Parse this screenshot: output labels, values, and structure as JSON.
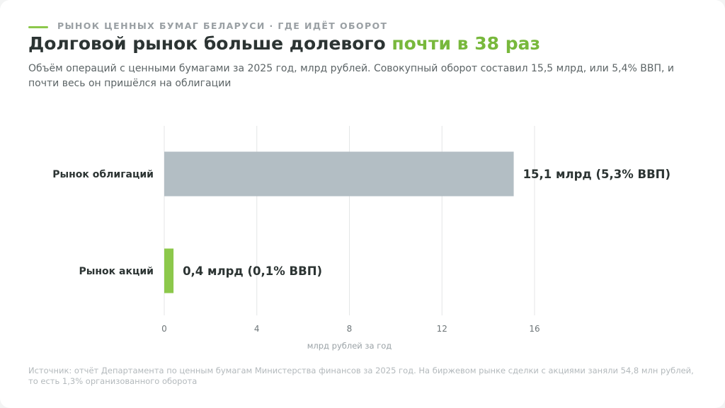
{
  "header": {
    "kicker": "РЫНОК ЦЕННЫХ БУМАГ БЕЛАРУСИ · ГДЕ ИДЁТ ОБОРОТ",
    "title_main": "Долговой рынок больше долевого ",
    "title_accent": "почти в 38 раз",
    "subtitle": "Объём операций с ценными бумагами за 2025 год, млрд рублей. Совокупный оборот составил 15,5 млрд, или 5,4% ВВП, и почти весь он пришёлся на облигации"
  },
  "chart_data": {
    "type": "bar",
    "orientation": "horizontal",
    "categories": [
      "Рынок облигаций",
      "Рынок акций"
    ],
    "values": [
      15.1,
      0.4
    ],
    "data_labels": [
      "15,1 млрд (5,3% ВВП)",
      "0,4 млрд (0,1% ВВП)"
    ],
    "colors": [
      "#b3bec4",
      "#8cc84b"
    ],
    "xlabel": "млрд рублей за год",
    "xlim": [
      0,
      16
    ],
    "xticks": [
      0,
      4,
      8,
      12,
      16
    ],
    "grid": true
  },
  "footer": {
    "source": "Источник: отчёт Департамента по ценным бумагам Министерства финансов за 2025 год. На биржевом рынке сделки с акциями заняли 54,8 млн рублей, то есть 1,3% организованного оборота"
  }
}
